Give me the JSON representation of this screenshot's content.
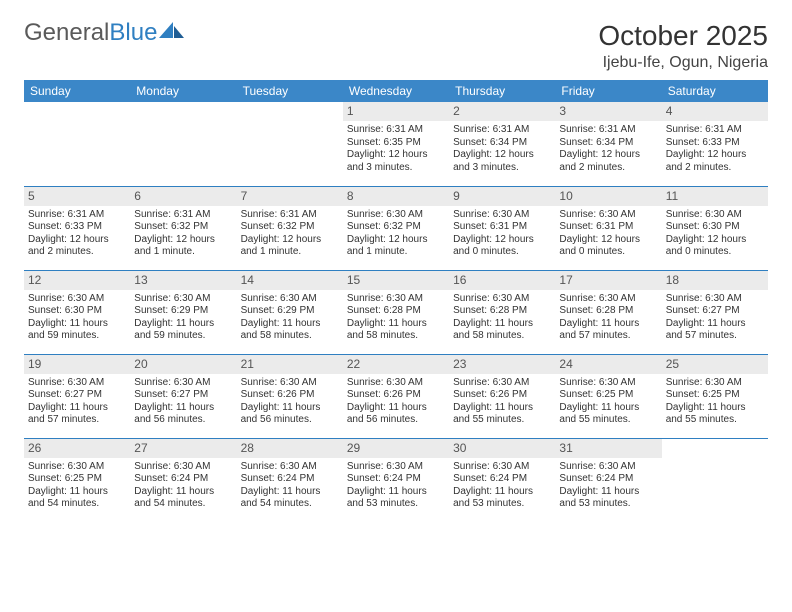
{
  "brand": {
    "part1": "General",
    "part2": "Blue"
  },
  "title": "October 2025",
  "location": "Ijebu-Ife, Ogun, Nigeria",
  "colors": {
    "header_bg": "#3b87c8",
    "header_text": "#ffffff",
    "daynum_bg": "#ebebeb",
    "rule": "#2f7fc1",
    "brand_gray": "#5a5a5a",
    "brand_blue": "#2f7fc1",
    "page_bg": "#ffffff",
    "text": "#333333"
  },
  "weekdays": [
    "Sunday",
    "Monday",
    "Tuesday",
    "Wednesday",
    "Thursday",
    "Friday",
    "Saturday"
  ],
  "weeks": [
    [
      null,
      null,
      null,
      {
        "d": "1",
        "sr": "Sunrise: 6:31 AM",
        "ss": "Sunset: 6:35 PM",
        "dl1": "Daylight: 12 hours",
        "dl2": "and 3 minutes."
      },
      {
        "d": "2",
        "sr": "Sunrise: 6:31 AM",
        "ss": "Sunset: 6:34 PM",
        "dl1": "Daylight: 12 hours",
        "dl2": "and 3 minutes."
      },
      {
        "d": "3",
        "sr": "Sunrise: 6:31 AM",
        "ss": "Sunset: 6:34 PM",
        "dl1": "Daylight: 12 hours",
        "dl2": "and 2 minutes."
      },
      {
        "d": "4",
        "sr": "Sunrise: 6:31 AM",
        "ss": "Sunset: 6:33 PM",
        "dl1": "Daylight: 12 hours",
        "dl2": "and 2 minutes."
      }
    ],
    [
      {
        "d": "5",
        "sr": "Sunrise: 6:31 AM",
        "ss": "Sunset: 6:33 PM",
        "dl1": "Daylight: 12 hours",
        "dl2": "and 2 minutes."
      },
      {
        "d": "6",
        "sr": "Sunrise: 6:31 AM",
        "ss": "Sunset: 6:32 PM",
        "dl1": "Daylight: 12 hours",
        "dl2": "and 1 minute."
      },
      {
        "d": "7",
        "sr": "Sunrise: 6:31 AM",
        "ss": "Sunset: 6:32 PM",
        "dl1": "Daylight: 12 hours",
        "dl2": "and 1 minute."
      },
      {
        "d": "8",
        "sr": "Sunrise: 6:30 AM",
        "ss": "Sunset: 6:32 PM",
        "dl1": "Daylight: 12 hours",
        "dl2": "and 1 minute."
      },
      {
        "d": "9",
        "sr": "Sunrise: 6:30 AM",
        "ss": "Sunset: 6:31 PM",
        "dl1": "Daylight: 12 hours",
        "dl2": "and 0 minutes."
      },
      {
        "d": "10",
        "sr": "Sunrise: 6:30 AM",
        "ss": "Sunset: 6:31 PM",
        "dl1": "Daylight: 12 hours",
        "dl2": "and 0 minutes."
      },
      {
        "d": "11",
        "sr": "Sunrise: 6:30 AM",
        "ss": "Sunset: 6:30 PM",
        "dl1": "Daylight: 12 hours",
        "dl2": "and 0 minutes."
      }
    ],
    [
      {
        "d": "12",
        "sr": "Sunrise: 6:30 AM",
        "ss": "Sunset: 6:30 PM",
        "dl1": "Daylight: 11 hours",
        "dl2": "and 59 minutes."
      },
      {
        "d": "13",
        "sr": "Sunrise: 6:30 AM",
        "ss": "Sunset: 6:29 PM",
        "dl1": "Daylight: 11 hours",
        "dl2": "and 59 minutes."
      },
      {
        "d": "14",
        "sr": "Sunrise: 6:30 AM",
        "ss": "Sunset: 6:29 PM",
        "dl1": "Daylight: 11 hours",
        "dl2": "and 58 minutes."
      },
      {
        "d": "15",
        "sr": "Sunrise: 6:30 AM",
        "ss": "Sunset: 6:28 PM",
        "dl1": "Daylight: 11 hours",
        "dl2": "and 58 minutes."
      },
      {
        "d": "16",
        "sr": "Sunrise: 6:30 AM",
        "ss": "Sunset: 6:28 PM",
        "dl1": "Daylight: 11 hours",
        "dl2": "and 58 minutes."
      },
      {
        "d": "17",
        "sr": "Sunrise: 6:30 AM",
        "ss": "Sunset: 6:28 PM",
        "dl1": "Daylight: 11 hours",
        "dl2": "and 57 minutes."
      },
      {
        "d": "18",
        "sr": "Sunrise: 6:30 AM",
        "ss": "Sunset: 6:27 PM",
        "dl1": "Daylight: 11 hours",
        "dl2": "and 57 minutes."
      }
    ],
    [
      {
        "d": "19",
        "sr": "Sunrise: 6:30 AM",
        "ss": "Sunset: 6:27 PM",
        "dl1": "Daylight: 11 hours",
        "dl2": "and 57 minutes."
      },
      {
        "d": "20",
        "sr": "Sunrise: 6:30 AM",
        "ss": "Sunset: 6:27 PM",
        "dl1": "Daylight: 11 hours",
        "dl2": "and 56 minutes."
      },
      {
        "d": "21",
        "sr": "Sunrise: 6:30 AM",
        "ss": "Sunset: 6:26 PM",
        "dl1": "Daylight: 11 hours",
        "dl2": "and 56 minutes."
      },
      {
        "d": "22",
        "sr": "Sunrise: 6:30 AM",
        "ss": "Sunset: 6:26 PM",
        "dl1": "Daylight: 11 hours",
        "dl2": "and 56 minutes."
      },
      {
        "d": "23",
        "sr": "Sunrise: 6:30 AM",
        "ss": "Sunset: 6:26 PM",
        "dl1": "Daylight: 11 hours",
        "dl2": "and 55 minutes."
      },
      {
        "d": "24",
        "sr": "Sunrise: 6:30 AM",
        "ss": "Sunset: 6:25 PM",
        "dl1": "Daylight: 11 hours",
        "dl2": "and 55 minutes."
      },
      {
        "d": "25",
        "sr": "Sunrise: 6:30 AM",
        "ss": "Sunset: 6:25 PM",
        "dl1": "Daylight: 11 hours",
        "dl2": "and 55 minutes."
      }
    ],
    [
      {
        "d": "26",
        "sr": "Sunrise: 6:30 AM",
        "ss": "Sunset: 6:25 PM",
        "dl1": "Daylight: 11 hours",
        "dl2": "and 54 minutes."
      },
      {
        "d": "27",
        "sr": "Sunrise: 6:30 AM",
        "ss": "Sunset: 6:24 PM",
        "dl1": "Daylight: 11 hours",
        "dl2": "and 54 minutes."
      },
      {
        "d": "28",
        "sr": "Sunrise: 6:30 AM",
        "ss": "Sunset: 6:24 PM",
        "dl1": "Daylight: 11 hours",
        "dl2": "and 54 minutes."
      },
      {
        "d": "29",
        "sr": "Sunrise: 6:30 AM",
        "ss": "Sunset: 6:24 PM",
        "dl1": "Daylight: 11 hours",
        "dl2": "and 53 minutes."
      },
      {
        "d": "30",
        "sr": "Sunrise: 6:30 AM",
        "ss": "Sunset: 6:24 PM",
        "dl1": "Daylight: 11 hours",
        "dl2": "and 53 minutes."
      },
      {
        "d": "31",
        "sr": "Sunrise: 6:30 AM",
        "ss": "Sunset: 6:24 PM",
        "dl1": "Daylight: 11 hours",
        "dl2": "and 53 minutes."
      },
      null
    ]
  ]
}
